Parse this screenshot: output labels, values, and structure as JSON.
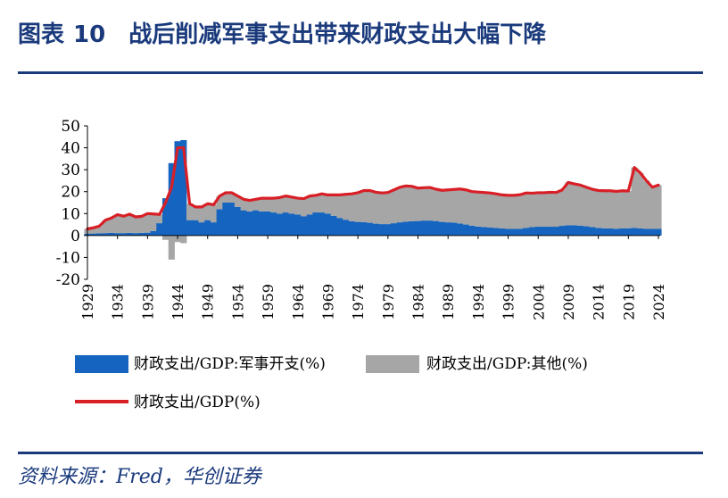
{
  "header": {
    "figure_label": "图表",
    "figure_number": "10",
    "title": "战后削减军事支出带来财政支出大幅下降"
  },
  "source": "资料来源：Fred，华创证券",
  "colors": {
    "title": "#1a3a7c",
    "military": "#1565c0",
    "other": "#a6a6a6",
    "total": "#d81f26"
  },
  "chart_data": {
    "type": "area",
    "title": "",
    "xlabel": "",
    "ylabel": "",
    "ylim": [
      -20,
      50
    ],
    "yticks": [
      "50",
      "40",
      "30",
      "20",
      "10",
      "0",
      "-10",
      "-20"
    ],
    "xticks": [
      "1929",
      "1934",
      "1939",
      "1944",
      "1949",
      "1954",
      "1959",
      "1964",
      "1969",
      "1974",
      "1979",
      "1984",
      "1989",
      "1994",
      "1999",
      "2004",
      "2009",
      "2014",
      "2019",
      "2024"
    ],
    "legend_position": "bottom",
    "legend": [
      {
        "key": "military",
        "label": "财政支出/GDP:军事开支(%)",
        "kind": "box"
      },
      {
        "key": "other",
        "label": "财政支出/GDP:其他(%)",
        "kind": "box"
      },
      {
        "key": "total",
        "label": "财政支出/GDP(%)",
        "kind": "line"
      }
    ],
    "x": [
      1929,
      1930,
      1931,
      1932,
      1933,
      1934,
      1935,
      1936,
      1937,
      1938,
      1939,
      1940,
      1941,
      1942,
      1943,
      1944,
      1945,
      1946,
      1947,
      1948,
      1949,
      1950,
      1951,
      1952,
      1953,
      1954,
      1955,
      1956,
      1957,
      1958,
      1959,
      1960,
      1961,
      1962,
      1963,
      1964,
      1965,
      1966,
      1967,
      1968,
      1969,
      1970,
      1971,
      1972,
      1973,
      1974,
      1975,
      1976,
      1977,
      1978,
      1979,
      1980,
      1981,
      1982,
      1983,
      1984,
      1985,
      1986,
      1987,
      1988,
      1989,
      1990,
      1991,
      1992,
      1993,
      1994,
      1995,
      1996,
      1997,
      1998,
      1999,
      2000,
      2001,
      2002,
      2003,
      2004,
      2005,
      2006,
      2007,
      2008,
      2009,
      2010,
      2011,
      2012,
      2013,
      2014,
      2015,
      2016,
      2017,
      2018,
      2019,
      2020,
      2021,
      2022,
      2023,
      2024
    ],
    "series": [
      {
        "name": "财政支出/GDP:军事开支(%)",
        "key": "military",
        "values": [
          0.8,
          0.9,
          1.0,
          1.1,
          1.2,
          1.1,
          1.1,
          1.2,
          1.1,
          1.2,
          1.3,
          2.0,
          5.6,
          17.0,
          33.0,
          43.0,
          43.5,
          7.0,
          7.0,
          6.0,
          7.0,
          6.0,
          12.0,
          15.0,
          15.0,
          13.0,
          11.5,
          11.0,
          11.5,
          11.0,
          11.0,
          10.5,
          10.0,
          10.5,
          10.0,
          9.5,
          8.8,
          9.5,
          10.5,
          10.5,
          10.0,
          9.0,
          8.0,
          7.2,
          6.5,
          6.2,
          6.1,
          5.8,
          5.4,
          5.2,
          5.2,
          5.6,
          6.0,
          6.3,
          6.5,
          6.6,
          6.8,
          6.8,
          6.6,
          6.2,
          6.0,
          5.9,
          5.5,
          5.0,
          4.5,
          4.1,
          3.8,
          3.6,
          3.4,
          3.2,
          3.0,
          3.0,
          3.1,
          3.4,
          3.8,
          4.0,
          4.0,
          4.0,
          4.0,
          4.4,
          4.7,
          4.7,
          4.5,
          4.2,
          3.9,
          3.5,
          3.3,
          3.2,
          3.1,
          3.2,
          3.3,
          3.5,
          3.2,
          3.0,
          3.0,
          3.0
        ]
      },
      {
        "name": "财政支出/GDP:其他(%)",
        "key": "other",
        "values": [
          2.2,
          2.6,
          3.3,
          5.9,
          6.8,
          8.4,
          7.7,
          8.5,
          7.4,
          7.5,
          8.7,
          7.8,
          4.0,
          -2.0,
          -11.0,
          -3.0,
          -3.5,
          7.5,
          6.0,
          7.0,
          7.5,
          8.0,
          6.0,
          4.5,
          4.5,
          5.0,
          5.0,
          5.0,
          5.0,
          6.0,
          6.0,
          6.5,
          7.3,
          7.5,
          7.5,
          7.5,
          8.0,
          8.5,
          7.8,
          8.5,
          8.5,
          9.5,
          10.5,
          11.6,
          12.5,
          13.3,
          14.4,
          14.7,
          14.3,
          14.2,
          14.4,
          15.2,
          16.0,
          16.3,
          15.9,
          15.0,
          15.0,
          15.1,
          14.5,
          14.4,
          14.8,
          15.1,
          15.7,
          15.8,
          15.5,
          15.7,
          15.8,
          15.8,
          15.6,
          15.3,
          15.3,
          15.3,
          15.5,
          16.0,
          15.5,
          15.5,
          15.5,
          15.7,
          15.6,
          16.4,
          19.5,
          18.8,
          18.5,
          17.8,
          17.2,
          17.0,
          17.1,
          17.2,
          17.0,
          17.2,
          17.0,
          27.5,
          25.3,
          22.0,
          19.0,
          20.0
        ]
      },
      {
        "name": "财政支出/GDP(%)",
        "key": "total",
        "values": [
          3.0,
          3.5,
          4.3,
          7.0,
          8.0,
          9.5,
          8.8,
          9.7,
          8.5,
          8.7,
          10.0,
          9.8,
          9.6,
          15.0,
          22.0,
          40.0,
          40.0,
          14.5,
          13.0,
          13.0,
          14.5,
          14.0,
          18.0,
          19.5,
          19.5,
          18.0,
          16.5,
          16.0,
          16.5,
          17.0,
          17.0,
          17.0,
          17.3,
          18.0,
          17.5,
          17.0,
          16.8,
          18.0,
          18.3,
          19.0,
          18.5,
          18.5,
          18.5,
          18.8,
          19.0,
          19.5,
          20.5,
          20.5,
          19.7,
          19.4,
          19.6,
          20.8,
          22.0,
          22.6,
          22.4,
          21.6,
          21.8,
          21.9,
          21.1,
          20.6,
          20.8,
          21.0,
          21.2,
          20.8,
          20.0,
          19.8,
          19.6,
          19.4,
          19.0,
          18.5,
          18.3,
          18.3,
          18.6,
          19.4,
          19.3,
          19.5,
          19.5,
          19.7,
          19.6,
          20.8,
          24.2,
          23.5,
          23.0,
          22.0,
          21.1,
          20.5,
          20.4,
          20.4,
          20.1,
          20.4,
          20.3,
          31.0,
          28.5,
          25.0,
          22.0,
          23.0
        ]
      }
    ]
  }
}
